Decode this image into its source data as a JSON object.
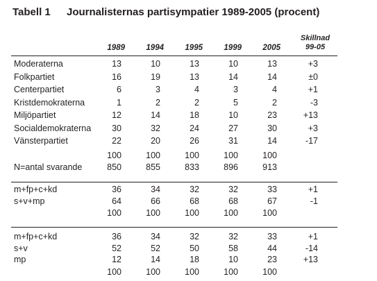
{
  "title": {
    "number": "Tabell 1",
    "text": "Journalisternas partisympatier 1989-2005 (procent)"
  },
  "columns": [
    "1989",
    "1994",
    "1995",
    "1999",
    "2005"
  ],
  "diff_header": [
    "Skillnad",
    "99-05"
  ],
  "parties": [
    {
      "label": "Moderaterna",
      "v": [
        "13",
        "10",
        "13",
        "10",
        "13"
      ],
      "diff": "+3"
    },
    {
      "label": "Folkpartiet",
      "v": [
        "16",
        "19",
        "13",
        "14",
        "14"
      ],
      "diff": "±0"
    },
    {
      "label": "Centerpartiet",
      "v": [
        "6",
        "3",
        "4",
        "3",
        "4"
      ],
      "diff": "+1"
    },
    {
      "label": "Kristdemokraterna",
      "v": [
        "1",
        "2",
        "2",
        "5",
        "2"
      ],
      "diff": "-3"
    },
    {
      "label": "Miljöpartiet",
      "v": [
        "12",
        "14",
        "18",
        "10",
        "23"
      ],
      "diff": "+13"
    },
    {
      "label": "Socialdemokraterna",
      "v": [
        "30",
        "32",
        "24",
        "27",
        "30"
      ],
      "diff": "+3"
    },
    {
      "label": "Vänsterpartiet",
      "v": [
        "22",
        "20",
        "26",
        "31",
        "14"
      ],
      "diff": "-17"
    }
  ],
  "totals": {
    "v": [
      "100",
      "100",
      "100",
      "100",
      "100"
    ]
  },
  "respondents": {
    "label": "N=antal svarande",
    "v": [
      "850",
      "855",
      "833",
      "896",
      "913"
    ]
  },
  "blocks2": [
    {
      "label": "m+fp+c+kd",
      "v": [
        "36",
        "34",
        "32",
        "32",
        "33"
      ],
      "diff": "+1"
    },
    {
      "label": "s+v+mp",
      "v": [
        "64",
        "66",
        "68",
        "68",
        "67"
      ],
      "diff": "-1"
    }
  ],
  "totals2": {
    "v": [
      "100",
      "100",
      "100",
      "100",
      "100"
    ]
  },
  "blocks3": [
    {
      "label": "m+fp+c+kd",
      "v": [
        "36",
        "34",
        "32",
        "32",
        "33"
      ],
      "diff": "+1"
    },
    {
      "label": "s+v",
      "v": [
        "52",
        "52",
        "50",
        "58",
        "44"
      ],
      "diff": "-14"
    },
    {
      "label": "mp",
      "v": [
        "12",
        "14",
        "18",
        "10",
        "23"
      ],
      "diff": "+13"
    }
  ],
  "totals3": {
    "v": [
      "100",
      "100",
      "100",
      "100",
      "100"
    ]
  }
}
